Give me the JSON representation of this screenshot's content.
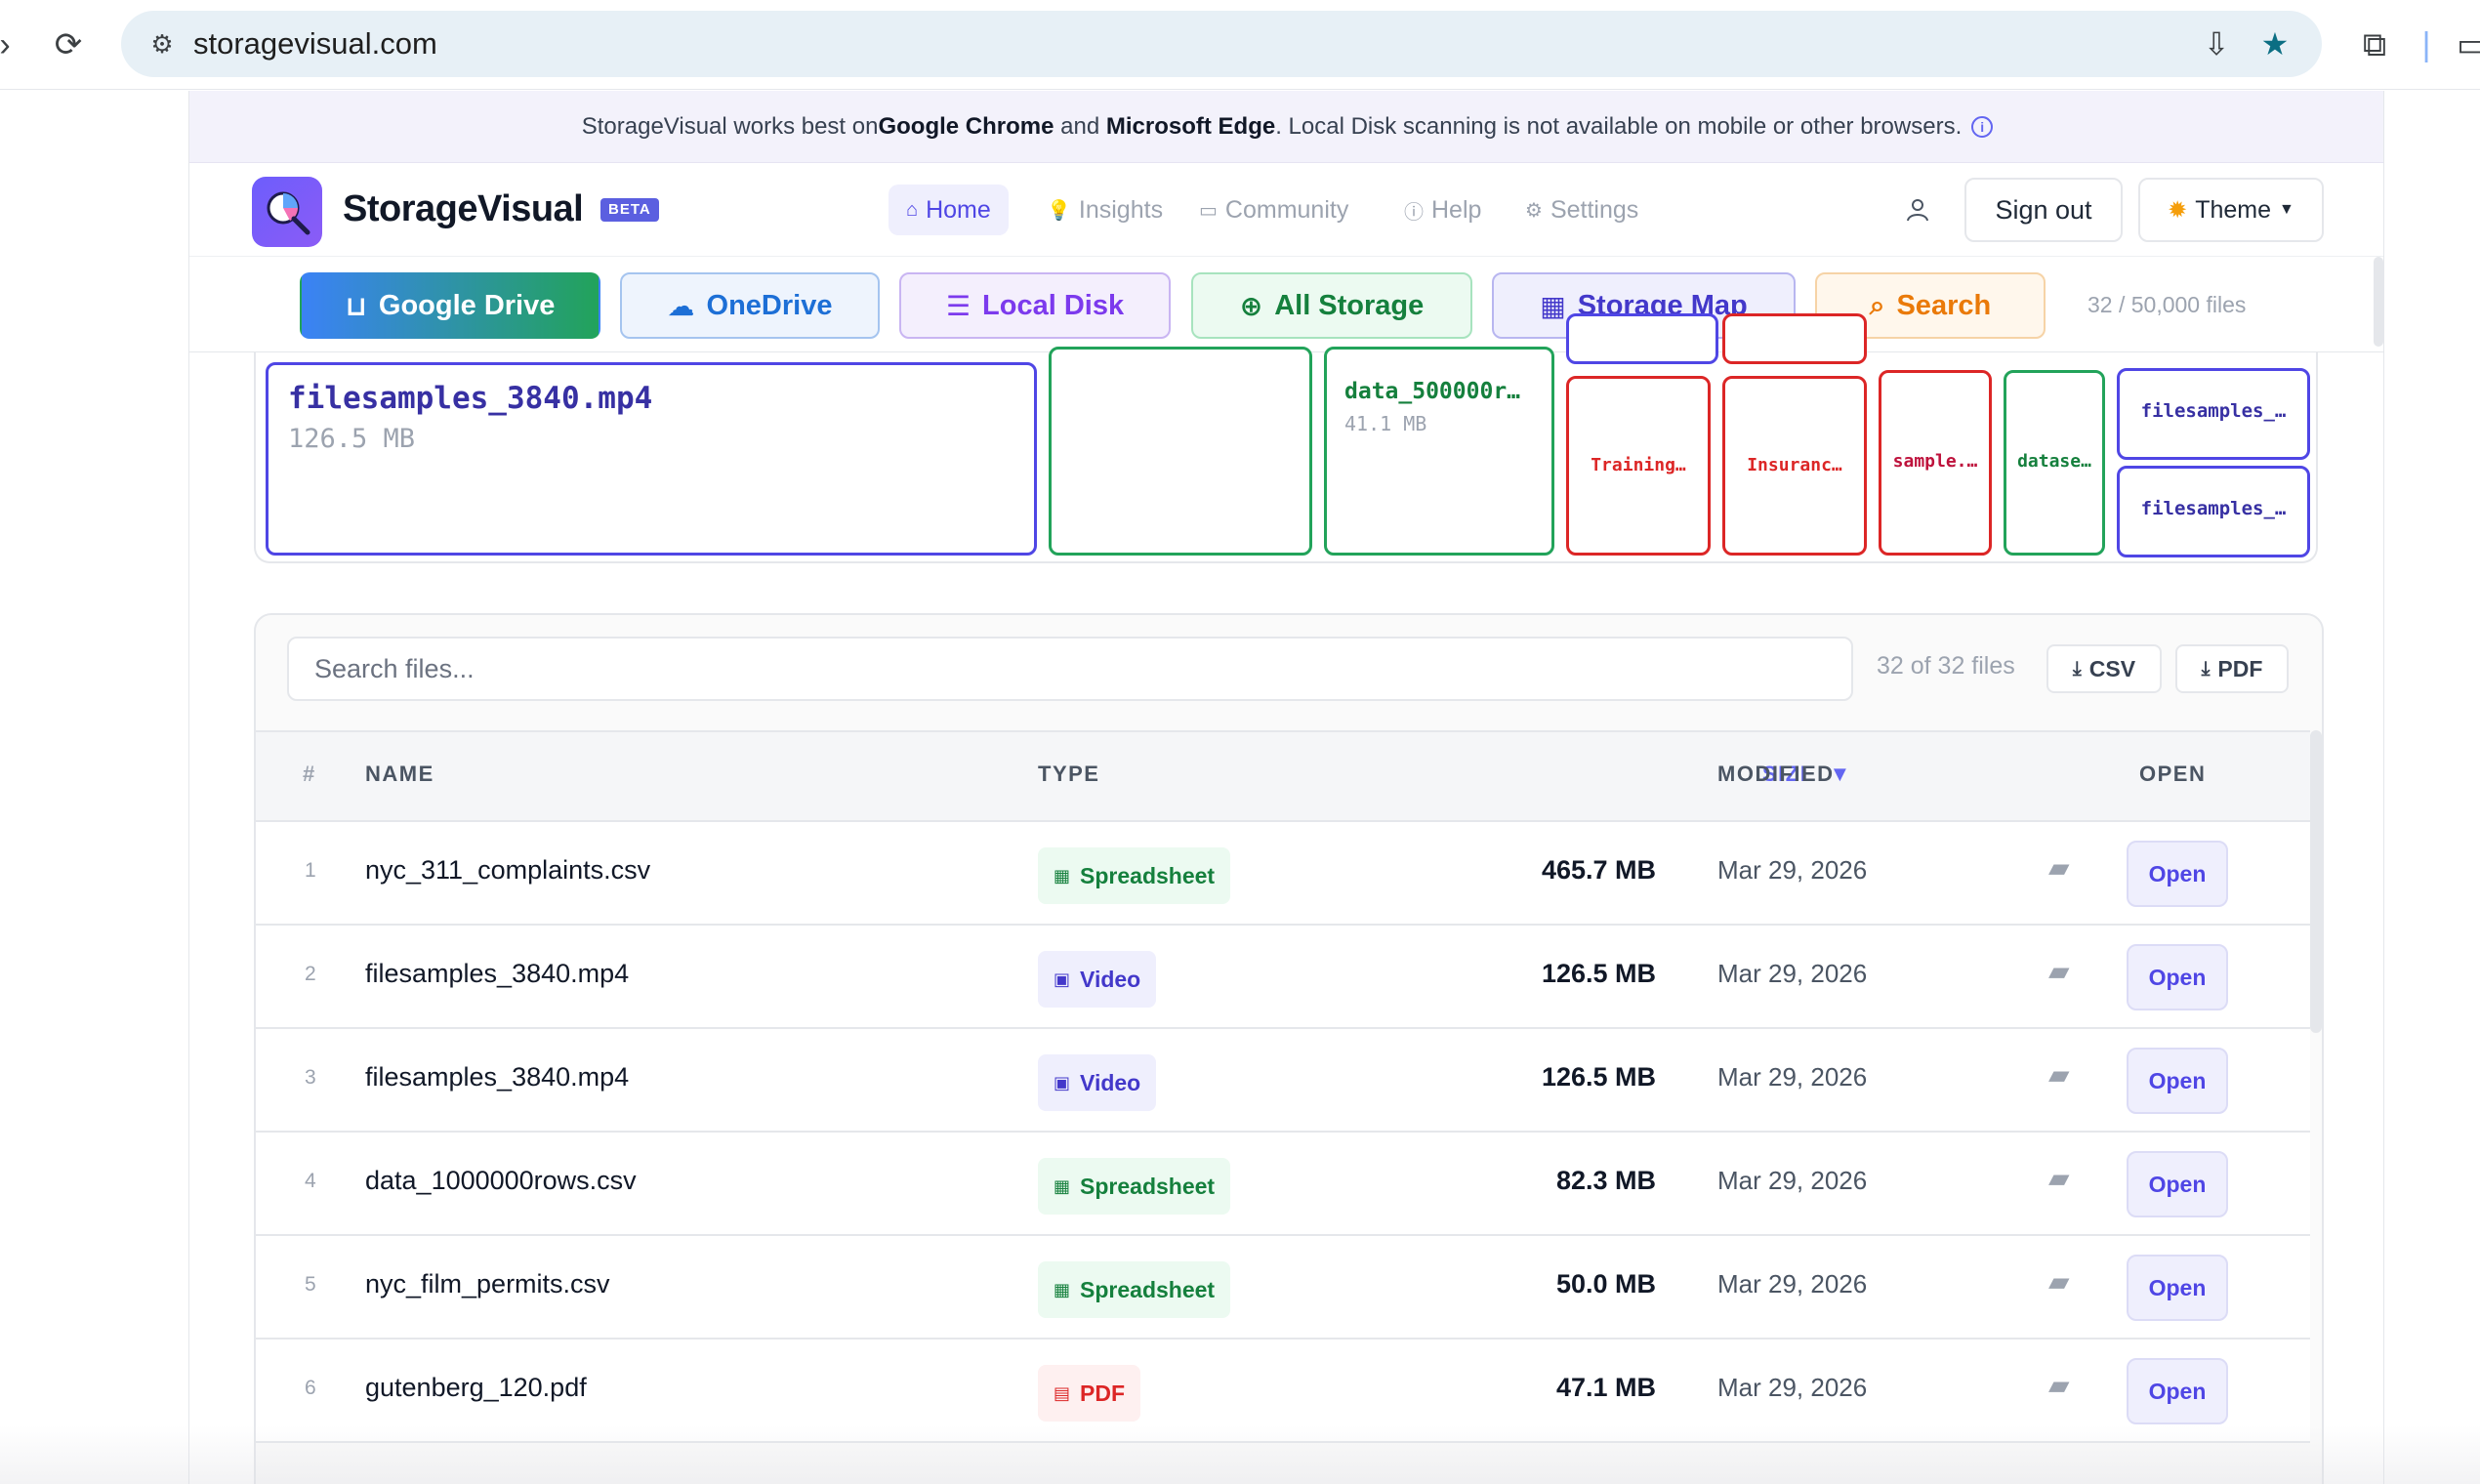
{
  "browser": {
    "url": "storagevisual.com"
  },
  "notice": {
    "text_before": "StorageVisual works best on ",
    "chrome": "Google Chrome",
    "and": " and ",
    "edge": "Microsoft Edge",
    "text_after": ". Local Disk scanning is not available on mobile or other browsers."
  },
  "header": {
    "brand": "StorageVisual",
    "badge": "BETA",
    "nav": [
      {
        "label": "Home",
        "icon": "home-icon"
      },
      {
        "label": "Insights",
        "icon": "lightbulb-icon"
      },
      {
        "label": "Community",
        "icon": "chat-icon"
      },
      {
        "label": "Help",
        "icon": "help-icon"
      },
      {
        "label": "Settings",
        "icon": "gear-icon"
      }
    ],
    "sign_out": "Sign out",
    "theme": "Theme"
  },
  "sources": {
    "tabs": [
      {
        "label": "Google Drive",
        "icon": "inbox-icon"
      },
      {
        "label": "OneDrive",
        "icon": "cloud-icon"
      },
      {
        "label": "Local Disk",
        "icon": "server-icon"
      },
      {
        "label": "All Storage",
        "icon": "globe-icon"
      },
      {
        "label": "Storage Map",
        "icon": "grid-icon"
      },
      {
        "label": "Search",
        "icon": "search-icon"
      }
    ],
    "file_count": "32 / 50,000 files"
  },
  "treemap": {
    "tiles": [
      {
        "name": "filesamples_3840.mp4",
        "size": "126.5 MB",
        "color": "#4f46e5"
      },
      {
        "name": "",
        "size": "",
        "color": "#22a35a"
      },
      {
        "name": "data_500000r…",
        "size": "41.1 MB",
        "color": "#22a35a"
      },
      {
        "name": "Training…",
        "size": "",
        "color": "#dc2626"
      },
      {
        "name": "Insuranc…",
        "size": "",
        "color": "#dc2626"
      },
      {
        "name": "sample.…",
        "size": "",
        "color": "#dc2626"
      },
      {
        "name": "datase…",
        "size": "",
        "color": "#22a35a"
      },
      {
        "name": "filesamples_…",
        "size": "",
        "color": "#4f46e5"
      },
      {
        "name": "filesamples_…",
        "size": "",
        "color": "#4f46e5"
      }
    ]
  },
  "table": {
    "search_placeholder": "Search files...",
    "results": "32 of 32 files",
    "csv": "CSV",
    "pdf": "PDF",
    "columns": {
      "index": "#",
      "name": "NAME",
      "type": "TYPE",
      "size": "SIZE",
      "modified": "MODIFIED",
      "open": "OPEN"
    },
    "sort_indicator": "▼",
    "rows": [
      {
        "index": "1",
        "name": "nyc_311_complaints.csv",
        "type": "Spreadsheet",
        "size": "465.7 MB",
        "modified": "Mar 29, 2026",
        "open": "Open"
      },
      {
        "index": "2",
        "name": "filesamples_3840.mp4",
        "type": "Video",
        "size": "126.5 MB",
        "modified": "Mar 29, 2026",
        "open": "Open"
      },
      {
        "index": "3",
        "name": "filesamples_3840.mp4",
        "type": "Video",
        "size": "126.5 MB",
        "modified": "Mar 29, 2026",
        "open": "Open"
      },
      {
        "index": "4",
        "name": "data_1000000rows.csv",
        "type": "Spreadsheet",
        "size": "82.3 MB",
        "modified": "Mar 29, 2026",
        "open": "Open"
      },
      {
        "index": "5",
        "name": "nyc_film_permits.csv",
        "type": "Spreadsheet",
        "size": "50.0 MB",
        "modified": "Mar 29, 2026",
        "open": "Open"
      },
      {
        "index": "6",
        "name": "gutenberg_120.pdf",
        "type": "PDF",
        "size": "47.1 MB",
        "modified": "Mar 29, 2026",
        "open": "Open"
      }
    ]
  }
}
